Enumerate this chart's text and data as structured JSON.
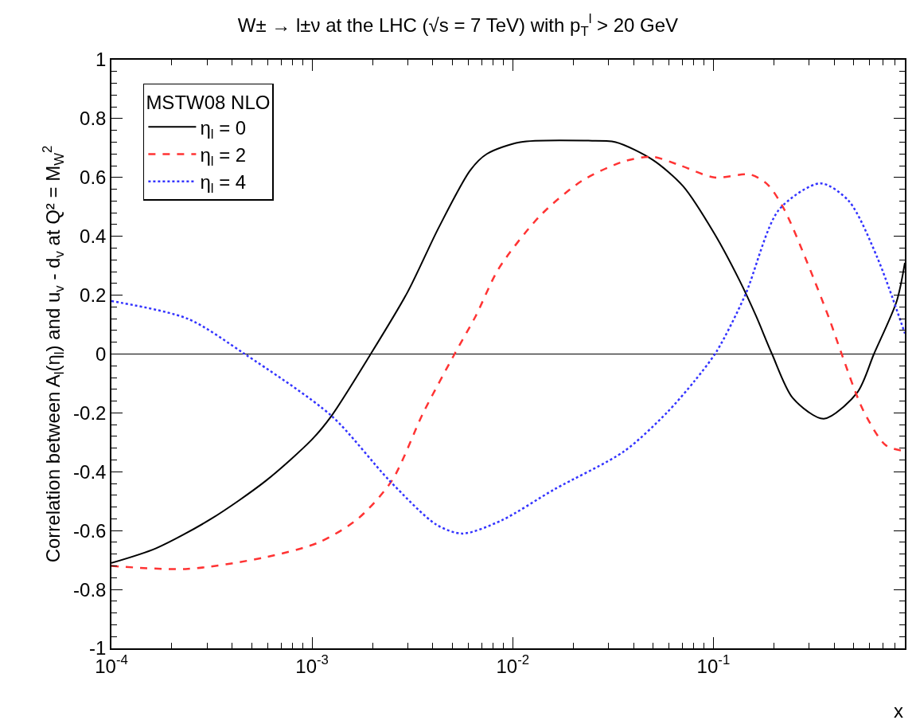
{
  "chart_data": {
    "type": "line",
    "title": "W± → l±ν at the LHC (√s = 7 TeV) with p$_{T}$$^{l}$ > 20 GeV",
    "xlabel": "x",
    "ylabel": "Correlation between A$_{l}$(η$_{l}$) and u$_{v}$ - d$_{v}$ at Q² = M$_{W}$$^{2}$",
    "legend_title": "MSTW08 NLO",
    "log": "x",
    "xlim": [
      0.0001,
      0.9
    ],
    "xticks": [
      {
        "value": 0.0001,
        "label": "10$^{-4}$"
      },
      {
        "value": 0.001,
        "label": "10$^{-3}$"
      },
      {
        "value": 0.01,
        "label": "10$^{-2}$"
      },
      {
        "value": 0.1,
        "label": "10$^{-1}$"
      }
    ],
    "ylim": [
      -1,
      1
    ],
    "yticks": [
      -1,
      -0.8,
      -0.6,
      -0.4,
      -0.2,
      0,
      0.2,
      0.4,
      0.6,
      0.8,
      1
    ],
    "grid": false,
    "legend": "top left",
    "marker": "none",
    "ref_lines": [
      {
        "axis": "y",
        "value": 0,
        "color": "#000000",
        "line_style": "solid"
      }
    ],
    "series": [
      {
        "name": "η$_{l}$ = 0",
        "color": "#000000",
        "line_style": "solid",
        "x": [
          0.0001,
          0.000167,
          0.000314,
          0.00059,
          0.001,
          0.00125,
          0.00196,
          0.00299,
          0.00428,
          0.00615,
          0.00743,
          0.0109,
          0.0238,
          0.0326,
          0.0498,
          0.0707,
          0.101,
          0.135,
          0.163,
          0.196,
          0.249,
          0.355,
          0.522,
          0.631,
          0.82,
          0.9
        ],
        "values": [
          -0.71,
          -0.66,
          -0.56,
          -0.43,
          -0.29,
          -0.21,
          0,
          0.21,
          0.43,
          0.625,
          0.68,
          0.72,
          0.725,
          0.72,
          0.66,
          0.57,
          0.41,
          0.25,
          0.13,
          0,
          -0.15,
          -0.22,
          -0.13,
          0,
          0.18,
          0.31
        ]
      },
      {
        "name": "η$_{l}$ = 2",
        "color": "#ff3333",
        "line_style": "dashed",
        "x": [
          0.0001,
          0.00024,
          0.00059,
          0.00108,
          0.00169,
          0.0025,
          0.00358,
          0.00513,
          0.00655,
          0.00851,
          0.0137,
          0.0223,
          0.036,
          0.0498,
          0.0689,
          0.101,
          0.153,
          0.187,
          0.226,
          0.294,
          0.378,
          0.436,
          0.557,
          0.723,
          0.9
        ],
        "values": [
          -0.72,
          -0.73,
          -0.69,
          -0.64,
          -0.56,
          -0.43,
          -0.2,
          0,
          0.13,
          0.29,
          0.47,
          0.59,
          0.655,
          0.67,
          0.64,
          0.6,
          0.61,
          0.575,
          0.49,
          0.31,
          0.12,
          0,
          -0.19,
          -0.31,
          -0.33
        ]
      },
      {
        "name": "η$_{l}$ = 4",
        "color": "#3333ff",
        "line_style": "dotted",
        "x": [
          0.0001,
          0.00024,
          0.000462,
          0.00125,
          0.00243,
          0.00417,
          0.00562,
          0.00881,
          0.0161,
          0.036,
          0.0585,
          0.0809,
          0.104,
          0.144,
          0.212,
          0.342,
          0.473,
          0.654,
          0.9
        ],
        "values": [
          0.18,
          0.12,
          0,
          -0.21,
          -0.43,
          -0.58,
          -0.61,
          -0.565,
          -0.46,
          -0.33,
          -0.2,
          -0.09,
          0.01,
          0.2,
          0.49,
          0.58,
          0.52,
          0.33,
          0.07
        ]
      }
    ]
  }
}
